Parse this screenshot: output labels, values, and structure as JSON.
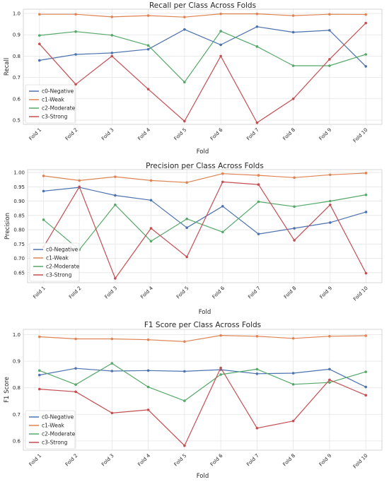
{
  "palette": {
    "c0-Negative": "#4c72b0",
    "c1-Weak": "#dd8452",
    "c2-Moderate": "#55a868",
    "c3-Strong": "#c44e52",
    "grid": "#e5e5e5",
    "frame": "#cccccc",
    "text": "#262626"
  },
  "chart_data": [
    {
      "type": "line",
      "title": "Recall per Class Across Folds",
      "xlabel": "Fold",
      "ylabel": "Recall",
      "categories": [
        "Fold 1",
        "Fold 2",
        "Fold 3",
        "Fold 4",
        "Fold 5",
        "Fold 6",
        "Fold 7",
        "Fold 8",
        "Fold 9",
        "Fold 10"
      ],
      "ylim": [
        0.48,
        1.02
      ],
      "yticks": [
        "0.5",
        "0.6",
        "0.7",
        "0.8",
        "0.9",
        "1.0"
      ],
      "grid": true,
      "legend_position": "lower-left",
      "series": [
        {
          "name": "c0-Negative",
          "values": [
            0.78,
            0.808,
            0.815,
            0.832,
            0.925,
            0.853,
            0.938,
            0.912,
            0.921,
            0.752
          ]
        },
        {
          "name": "c1-Weak",
          "values": [
            0.996,
            0.996,
            0.984,
            0.99,
            0.983,
            0.998,
            0.998,
            0.99,
            0.996,
            0.995
          ]
        },
        {
          "name": "c2-Moderate",
          "values": [
            0.897,
            0.915,
            0.898,
            0.85,
            0.678,
            0.917,
            0.845,
            0.755,
            0.755,
            0.808
          ]
        },
        {
          "name": "c3-Strong",
          "values": [
            0.857,
            0.668,
            0.8,
            0.645,
            0.495,
            0.8,
            0.488,
            0.6,
            0.785,
            0.955
          ]
        }
      ]
    },
    {
      "type": "line",
      "title": "Precision per Class Across Folds",
      "xlabel": "Fold",
      "ylabel": "Precision",
      "categories": [
        "Fold 1",
        "Fold 2",
        "Fold 3",
        "Fold 4",
        "Fold 5",
        "Fold 6",
        "Fold 7",
        "Fold 8",
        "Fold 9",
        "Fold 10"
      ],
      "ylim": [
        0.615,
        1.01
      ],
      "yticks": [
        "0.65",
        "0.70",
        "0.75",
        "0.80",
        "0.85",
        "0.90",
        "0.95",
        "1.00"
      ],
      "grid": true,
      "legend_position": "lower-left",
      "series": [
        {
          "name": "c0-Negative",
          "values": [
            0.935,
            0.948,
            0.92,
            0.903,
            0.807,
            0.882,
            0.785,
            0.805,
            0.825,
            0.862
          ]
        },
        {
          "name": "c1-Weak",
          "values": [
            0.988,
            0.972,
            0.985,
            0.972,
            0.965,
            0.996,
            0.99,
            0.982,
            0.992,
            0.998
          ]
        },
        {
          "name": "c2-Moderate",
          "values": [
            0.835,
            0.73,
            0.887,
            0.76,
            0.838,
            0.792,
            0.898,
            0.881,
            0.9,
            0.922
          ]
        },
        {
          "name": "c3-Strong",
          "values": [
            0.74,
            0.95,
            0.63,
            0.805,
            0.705,
            0.967,
            0.958,
            0.763,
            0.887,
            0.648
          ]
        }
      ]
    },
    {
      "type": "line",
      "title": "F1 Score per Class Across Folds",
      "xlabel": "Fold",
      "ylabel": "F1 Score",
      "categories": [
        "Fold 1",
        "Fold 2",
        "Fold 3",
        "Fold 4",
        "Fold 5",
        "Fold 6",
        "Fold 7",
        "Fold 8",
        "Fold 9",
        "Fold 10"
      ],
      "ylim": [
        0.565,
        1.02
      ],
      "yticks": [
        "0.6",
        "0.7",
        "0.8",
        "0.9",
        "1.0"
      ],
      "grid": true,
      "legend_position": "lower-left",
      "series": [
        {
          "name": "c0-Negative",
          "values": [
            0.848,
            0.873,
            0.863,
            0.865,
            0.862,
            0.868,
            0.853,
            0.855,
            0.87,
            0.803
          ]
        },
        {
          "name": "c1-Weak",
          "values": [
            0.992,
            0.984,
            0.984,
            0.981,
            0.974,
            0.997,
            0.994,
            0.986,
            0.994,
            0.996
          ]
        },
        {
          "name": "c2-Moderate",
          "values": [
            0.865,
            0.812,
            0.892,
            0.803,
            0.751,
            0.85,
            0.87,
            0.813,
            0.82,
            0.86
          ]
        },
        {
          "name": "c3-Strong",
          "values": [
            0.795,
            0.785,
            0.705,
            0.717,
            0.582,
            0.875,
            0.648,
            0.675,
            0.83,
            0.772
          ]
        }
      ]
    }
  ]
}
